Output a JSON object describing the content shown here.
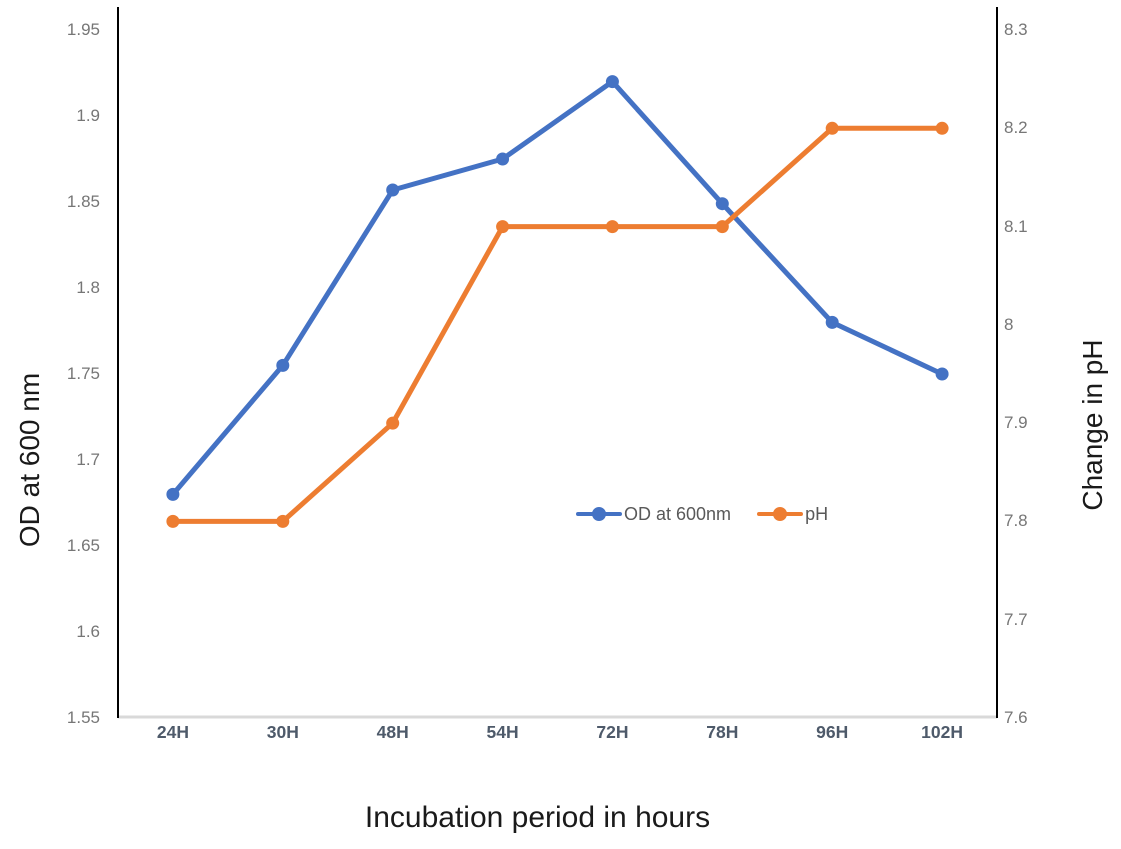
{
  "chart_data": {
    "type": "line",
    "title": "",
    "xlabel": "Incubation period in hours",
    "ylabel_left": "OD at 600 nm",
    "ylabel_right": "Change in pH",
    "categories": [
      "24H",
      "30H",
      "48H",
      "54H",
      "72H",
      "78H",
      "96H",
      "102H"
    ],
    "series": [
      {
        "name": "OD at 600nm",
        "axis": "left",
        "color": "#4472C4",
        "values": [
          1.68,
          1.755,
          1.857,
          1.875,
          1.92,
          1.849,
          1.78,
          1.75
        ]
      },
      {
        "name": "pH",
        "axis": "right",
        "color": "#ED7D31",
        "values": [
          7.8,
          7.8,
          7.9,
          8.1,
          8.1,
          8.1,
          8.2,
          8.2
        ]
      }
    ],
    "left_axis": {
      "min": 1.55,
      "max": 1.95,
      "step": 0.05,
      "tick_labels": [
        "1.95",
        "1.9",
        "1.85",
        "1.8",
        "1.75",
        "1.7",
        "1.65",
        "1.6",
        "1.55"
      ]
    },
    "right_axis": {
      "min": 7.6,
      "max": 8.3,
      "step": 0.1,
      "tick_labels": [
        "8.3",
        "8.2",
        "8.1",
        "8",
        "7.9",
        "7.8",
        "7.7",
        "7.6"
      ]
    },
    "legend": {
      "position": "inside-center-right",
      "items": [
        "OD at 600nm",
        "pH"
      ]
    },
    "grid": false,
    "colors": {
      "axis_line": "#000000",
      "baseline": "#d9d9d9",
      "tick_label": "#767676",
      "category_label": "#4e5a6a"
    }
  }
}
